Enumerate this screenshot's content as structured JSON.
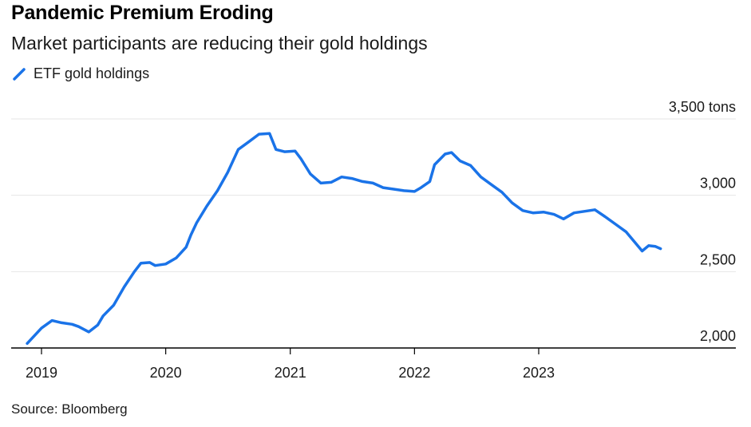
{
  "title": "Pandemic Premium Eroding",
  "subtitle": "Market participants are reducing their gold holdings",
  "source": "Source: Bloomberg",
  "colors": {
    "series": "#1a73e8",
    "grid": "#e6e6e6",
    "axis": "#000000"
  },
  "chart_data": {
    "type": "line",
    "title": "Pandemic Premium Eroding",
    "subtitle": "Market participants are reducing their gold holdings",
    "xlabel": "",
    "ylabel": "",
    "unit": "tons",
    "ylim": [
      2000,
      3500
    ],
    "xlim": [
      "2018-12-01",
      "2024-06-01"
    ],
    "y_ticks": [
      {
        "value": 2000,
        "label": "2,000"
      },
      {
        "value": 2500,
        "label": "2,500"
      },
      {
        "value": 3000,
        "label": "3,000"
      },
      {
        "value": 3500,
        "label": "3,500 tons"
      }
    ],
    "x_ticks": [
      {
        "value": "2019-01-01",
        "label": "2019"
      },
      {
        "value": "2020-01-01",
        "label": "2020"
      },
      {
        "value": "2021-01-01",
        "label": "2021"
      },
      {
        "value": "2022-01-01",
        "label": "2022"
      },
      {
        "value": "2023-01-01",
        "label": "2023"
      }
    ],
    "grid": true,
    "legend_position": "top-left",
    "series": [
      {
        "name": "ETF gold holdings",
        "color": "#1a73e8",
        "points": [
          [
            "2018-11-20",
            2030
          ],
          [
            "2019-01-01",
            2130
          ],
          [
            "2019-02-01",
            2180
          ],
          [
            "2019-03-01",
            2165
          ],
          [
            "2019-04-01",
            2155
          ],
          [
            "2019-04-20",
            2140
          ],
          [
            "2019-05-20",
            2105
          ],
          [
            "2019-06-15",
            2150
          ],
          [
            "2019-07-01",
            2210
          ],
          [
            "2019-08-01",
            2280
          ],
          [
            "2019-09-01",
            2400
          ],
          [
            "2019-10-01",
            2500
          ],
          [
            "2019-10-20",
            2555
          ],
          [
            "2019-11-15",
            2560
          ],
          [
            "2019-12-01",
            2540
          ],
          [
            "2020-01-01",
            2550
          ],
          [
            "2020-02-01",
            2590
          ],
          [
            "2020-03-01",
            2660
          ],
          [
            "2020-03-15",
            2740
          ],
          [
            "2020-04-01",
            2820
          ],
          [
            "2020-05-01",
            2930
          ],
          [
            "2020-06-01",
            3030
          ],
          [
            "2020-07-01",
            3150
          ],
          [
            "2020-08-01",
            3300
          ],
          [
            "2020-09-01",
            3350
          ],
          [
            "2020-10-01",
            3400
          ],
          [
            "2020-11-01",
            3405
          ],
          [
            "2020-11-20",
            3300
          ],
          [
            "2020-12-15",
            3285
          ],
          [
            "2021-01-15",
            3290
          ],
          [
            "2021-02-01",
            3240
          ],
          [
            "2021-03-01",
            3140
          ],
          [
            "2021-04-01",
            3080
          ],
          [
            "2021-05-01",
            3085
          ],
          [
            "2021-06-01",
            3120
          ],
          [
            "2021-07-01",
            3110
          ],
          [
            "2021-08-01",
            3090
          ],
          [
            "2021-09-01",
            3080
          ],
          [
            "2021-10-01",
            3050
          ],
          [
            "2021-11-01",
            3040
          ],
          [
            "2021-12-01",
            3030
          ],
          [
            "2022-01-01",
            3025
          ],
          [
            "2022-01-20",
            3050
          ],
          [
            "2022-02-15",
            3090
          ],
          [
            "2022-03-01",
            3200
          ],
          [
            "2022-04-01",
            3270
          ],
          [
            "2022-04-20",
            3280
          ],
          [
            "2022-05-15",
            3225
          ],
          [
            "2022-06-15",
            3195
          ],
          [
            "2022-07-15",
            3120
          ],
          [
            "2022-08-15",
            3070
          ],
          [
            "2022-09-15",
            3020
          ],
          [
            "2022-10-15",
            2950
          ],
          [
            "2022-11-15",
            2900
          ],
          [
            "2022-12-15",
            2885
          ],
          [
            "2023-01-15",
            2890
          ],
          [
            "2023-02-15",
            2875
          ],
          [
            "2023-03-15",
            2845
          ],
          [
            "2023-04-15",
            2885
          ],
          [
            "2023-05-15",
            2895
          ],
          [
            "2023-06-15",
            2905
          ],
          [
            "2023-07-15",
            2860
          ],
          [
            "2023-08-15",
            2810
          ],
          [
            "2023-09-15",
            2760
          ],
          [
            "2023-10-15",
            2680
          ],
          [
            "2023-11-01",
            2635
          ],
          [
            "2023-11-20",
            2670
          ],
          [
            "2023-12-10",
            2665
          ],
          [
            "2023-12-25",
            2650
          ]
        ]
      }
    ]
  }
}
